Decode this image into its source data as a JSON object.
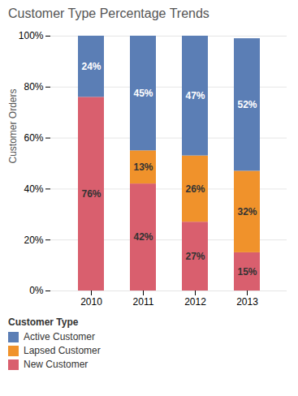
{
  "chart_data": {
    "type": "bar",
    "stacked": true,
    "title": "Customer Type Percentage Trends",
    "categories": [
      "2010",
      "2011",
      "2012",
      "2013"
    ],
    "series": [
      {
        "name": "New Customer",
        "color": "#d95f6e",
        "values": [
          76,
          42,
          27,
          15
        ],
        "value_labels": [
          "76%",
          "42%",
          "27%",
          "15%"
        ]
      },
      {
        "name": "Lapsed Customer",
        "color": "#f0922b",
        "values": [
          0,
          13,
          26,
          32
        ],
        "value_labels": [
          null,
          "13%",
          "26%",
          "32%"
        ]
      },
      {
        "name": "Active Customer",
        "color": "#5b7eb5",
        "values": [
          24,
          45,
          47,
          52
        ],
        "value_labels": [
          "24%",
          "45%",
          "47%",
          "52%"
        ]
      }
    ],
    "ylabel": "Customer Orders",
    "ylim": [
      0,
      100
    ],
    "yticks": [
      {
        "value": 0,
        "label": "0%"
      },
      {
        "value": 20,
        "label": "20%"
      },
      {
        "value": 40,
        "label": "40%"
      },
      {
        "value": 60,
        "label": "60%"
      },
      {
        "value": 80,
        "label": "80%"
      },
      {
        "value": 100,
        "label": "100%"
      }
    ],
    "grid": true,
    "data_labels": true,
    "legend": "bottom",
    "legend_title": "Customer Type"
  }
}
